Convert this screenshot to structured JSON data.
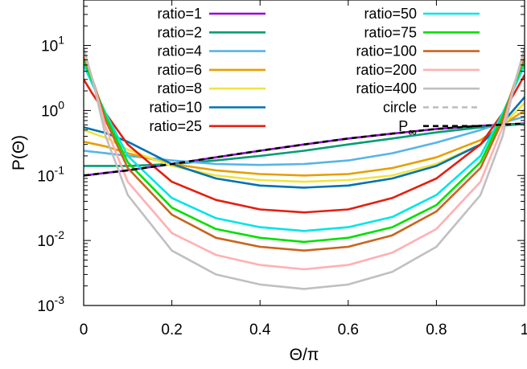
{
  "chart_data": {
    "type": "line",
    "title": "",
    "xlabel": "Θ/π",
    "ylabel": "P(Θ)",
    "xlim": [
      0,
      1
    ],
    "ylim": [
      0.001,
      50
    ],
    "yscale": "log",
    "grid": false,
    "legend_position": "top",
    "x_ticks": [
      {
        "value": 0,
        "label": "0"
      },
      {
        "value": 0.2,
        "label": "0.2"
      },
      {
        "value": 0.4,
        "label": "0.4"
      },
      {
        "value": 0.6,
        "label": "0.6"
      },
      {
        "value": 0.8,
        "label": "0.8"
      },
      {
        "value": 1,
        "label": "1"
      }
    ],
    "y_ticks": [
      {
        "value": 0.001,
        "base": "10",
        "exp": "-3"
      },
      {
        "value": 0.01,
        "base": "10",
        "exp": "-2"
      },
      {
        "value": 0.1,
        "base": "10",
        "exp": "-1"
      },
      {
        "value": 1,
        "base": "10",
        "exp": "0"
      },
      {
        "value": 10,
        "base": "10",
        "exp": "1"
      }
    ],
    "series": [
      {
        "name": "ratio=1",
        "color": "#9400d3",
        "dash": "solid",
        "x": [
          0,
          0.1,
          0.2,
          0.3,
          0.4,
          0.5,
          0.6,
          0.7,
          0.8,
          0.9,
          1.0
        ],
        "y": [
          0.1,
          0.12,
          0.15,
          0.19,
          0.24,
          0.3,
          0.37,
          0.44,
          0.52,
          0.58,
          0.63
        ]
      },
      {
        "name": "ratio=2",
        "color": "#009e73",
        "dash": "solid",
        "x": [
          0,
          0.1,
          0.2,
          0.3,
          0.4,
          0.5,
          0.6,
          0.7,
          0.8,
          0.9,
          1.0
        ],
        "y": [
          0.14,
          0.14,
          0.15,
          0.17,
          0.2,
          0.24,
          0.3,
          0.37,
          0.46,
          0.55,
          0.62
        ]
      },
      {
        "name": "ratio=4",
        "color": "#56b4e9",
        "dash": "solid",
        "x": [
          0,
          0.05,
          0.1,
          0.2,
          0.3,
          0.4,
          0.5,
          0.6,
          0.7,
          0.8,
          0.9,
          0.95,
          1.0
        ],
        "y": [
          0.24,
          0.22,
          0.2,
          0.17,
          0.15,
          0.145,
          0.15,
          0.17,
          0.22,
          0.32,
          0.5,
          0.65,
          0.8
        ]
      },
      {
        "name": "ratio=6",
        "color": "#e69f00",
        "dash": "solid",
        "x": [
          0,
          0.05,
          0.1,
          0.2,
          0.3,
          0.4,
          0.5,
          0.6,
          0.7,
          0.8,
          0.9,
          0.95,
          1.0
        ],
        "y": [
          0.33,
          0.28,
          0.22,
          0.15,
          0.12,
          0.105,
          0.1,
          0.105,
          0.13,
          0.19,
          0.35,
          0.6,
          1.0
        ]
      },
      {
        "name": "ratio=8",
        "color": "#f0e442",
        "dash": "solid",
        "x": [
          0,
          0.05,
          0.1,
          0.2,
          0.3,
          0.4,
          0.5,
          0.6,
          0.7,
          0.8,
          0.9,
          0.95,
          1.0
        ],
        "y": [
          0.5,
          0.38,
          0.25,
          0.14,
          0.1,
          0.085,
          0.08,
          0.085,
          0.1,
          0.15,
          0.3,
          0.6,
          1.3
        ]
      },
      {
        "name": "ratio=10",
        "color": "#0072b2",
        "dash": "solid",
        "x": [
          0,
          0.05,
          0.1,
          0.2,
          0.3,
          0.4,
          0.5,
          0.6,
          0.7,
          0.8,
          0.9,
          0.95,
          1.0
        ],
        "y": [
          0.55,
          0.45,
          0.33,
          0.15,
          0.09,
          0.07,
          0.065,
          0.07,
          0.09,
          0.14,
          0.3,
          0.65,
          1.6
        ]
      },
      {
        "name": "ratio=25",
        "color": "#e51e10",
        "dash": "solid",
        "x": [
          0,
          0.02,
          0.05,
          0.1,
          0.2,
          0.3,
          0.4,
          0.5,
          0.6,
          0.7,
          0.8,
          0.9,
          0.95,
          0.98,
          1.0
        ],
        "y": [
          3.0,
          1.8,
          0.9,
          0.3,
          0.08,
          0.042,
          0.03,
          0.027,
          0.03,
          0.045,
          0.09,
          0.3,
          0.9,
          2.0,
          3.5
        ]
      },
      {
        "name": "ratio=50",
        "color": "#00e5e5",
        "dash": "solid",
        "x": [
          0,
          0.02,
          0.05,
          0.1,
          0.2,
          0.3,
          0.4,
          0.5,
          0.6,
          0.7,
          0.8,
          0.9,
          0.95,
          0.98,
          1.0
        ],
        "y": [
          5.0,
          2.5,
          0.9,
          0.2,
          0.045,
          0.022,
          0.016,
          0.014,
          0.016,
          0.023,
          0.05,
          0.2,
          0.9,
          2.5,
          5.0
        ]
      },
      {
        "name": "ratio=75",
        "color": "#00e000",
        "dash": "solid",
        "x": [
          0,
          0.02,
          0.05,
          0.1,
          0.2,
          0.3,
          0.4,
          0.5,
          0.6,
          0.7,
          0.8,
          0.9,
          0.95,
          0.98,
          1.0
        ],
        "y": [
          6.0,
          2.8,
          0.8,
          0.16,
          0.032,
          0.015,
          0.011,
          0.0095,
          0.011,
          0.016,
          0.035,
          0.16,
          0.8,
          2.8,
          6.0
        ]
      },
      {
        "name": "ratio=100",
        "color": "#c8641e",
        "dash": "solid",
        "x": [
          0,
          0.02,
          0.05,
          0.1,
          0.2,
          0.3,
          0.4,
          0.5,
          0.6,
          0.7,
          0.8,
          0.9,
          0.95,
          0.98,
          1.0
        ],
        "y": [
          7.0,
          3.0,
          0.7,
          0.13,
          0.025,
          0.011,
          0.008,
          0.007,
          0.008,
          0.012,
          0.028,
          0.13,
          0.7,
          3.0,
          7.0
        ]
      },
      {
        "name": "ratio=200",
        "color": "#ffb0b0",
        "dash": "solid",
        "x": [
          0,
          0.02,
          0.05,
          0.1,
          0.2,
          0.3,
          0.4,
          0.5,
          0.6,
          0.7,
          0.8,
          0.9,
          0.95,
          0.98,
          1.0
        ],
        "y": [
          8.0,
          3.0,
          0.55,
          0.08,
          0.013,
          0.006,
          0.0042,
          0.0036,
          0.0042,
          0.0065,
          0.015,
          0.08,
          0.55,
          3.0,
          8.0
        ]
      },
      {
        "name": "ratio=400",
        "color": "#c0c0c0",
        "dash": "solid",
        "x": [
          0,
          0.02,
          0.05,
          0.1,
          0.2,
          0.3,
          0.4,
          0.5,
          0.6,
          0.7,
          0.8,
          0.9,
          0.95,
          0.98,
          1.0
        ],
        "y": [
          9.0,
          3.0,
          0.4,
          0.05,
          0.007,
          0.003,
          0.0021,
          0.0018,
          0.0021,
          0.0033,
          0.008,
          0.05,
          0.4,
          3.0,
          9.0
        ]
      },
      {
        "name": "circle",
        "color": "#bbbbbb",
        "dash": "dashed",
        "x": [
          0,
          0.1,
          0.2,
          0.3,
          0.4,
          0.5,
          0.6,
          0.7,
          0.8,
          0.9,
          1.0
        ],
        "y": [
          0.1,
          0.12,
          0.15,
          0.19,
          0.24,
          0.3,
          0.37,
          0.44,
          0.52,
          0.58,
          0.63
        ]
      },
      {
        "name": "P∞",
        "color": "#000000",
        "dash": "dashed",
        "x": [
          0,
          0.1,
          0.2,
          0.3,
          0.4,
          0.5,
          0.6,
          0.7,
          0.8,
          0.9,
          1.0
        ],
        "y": [
          0.1,
          0.12,
          0.15,
          0.19,
          0.24,
          0.3,
          0.37,
          0.44,
          0.52,
          0.58,
          0.63
        ]
      }
    ]
  }
}
